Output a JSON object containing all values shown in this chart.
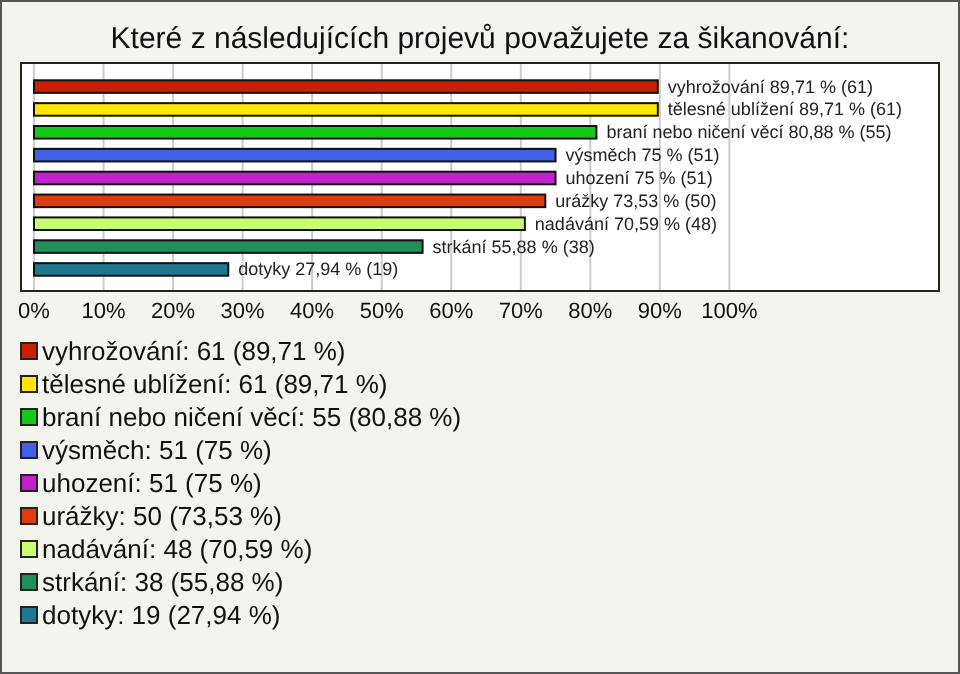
{
  "chart_data": {
    "type": "bar",
    "orientation": "horizontal",
    "title": "Které z následujících projevů považujete za šikanování:",
    "categories": [
      null,
      null,
      null,
      null,
      null,
      null,
      null,
      null,
      null
    ],
    "values": [
      89.71,
      89.71,
      80.88,
      75,
      75,
      73.53,
      70.59,
      55.88,
      27.94
    ],
    "colors": [
      "#c82000",
      "#ffe600",
      "#18c818",
      "#4060e8",
      "#c020d0",
      "#e03a10",
      "#c8ff70",
      "#20905a",
      "#207890"
    ],
    "value_labels": [
      "vyhrožování 89,71 % (61)",
      "tělesné ublížení 89,71 % (61)",
      "braní nebo ničení věcí 80,88 % (55)",
      "výsměch 75 % (51)",
      "uhození 75 % (51)",
      "urážky 73,53 % (50)",
      "nadávání 70,59 % (48)",
      "strkání 55,88 % (38)",
      "dotyky 27,94 % (19)"
    ],
    "xlim": [
      0,
      130
    ],
    "xticks": [
      {
        "value": 0,
        "label": "0%"
      },
      {
        "value": 10,
        "label": "10%"
      },
      {
        "value": 20,
        "label": "20%"
      },
      {
        "value": 30,
        "label": "30%"
      },
      {
        "value": 40,
        "label": "40%"
      },
      {
        "value": 50,
        "label": "50%"
      },
      {
        "value": 60,
        "label": "60%"
      },
      {
        "value": 70,
        "label": "70%"
      },
      {
        "value": 80,
        "label": "80%"
      },
      {
        "value": 90,
        "label": "90%"
      },
      {
        "value": 100,
        "label": "100%"
      }
    ],
    "grid": "x",
    "annotations": [
      "vyhrožování: 61 (89,71 %)",
      "tělesné ublížení: 61 (89,71 %)",
      "braní nebo ničení věcí: 55 (80,88 %)",
      "výsměch: 51 (75 %)",
      "uhození: 51 (75 %)",
      "urážky: 50 (73,53 %)",
      "nadávání: 48 (70,59 %)",
      "strkání: 38 (55,88 %)",
      "dotyky: 19 (27,94 %)"
    ]
  }
}
